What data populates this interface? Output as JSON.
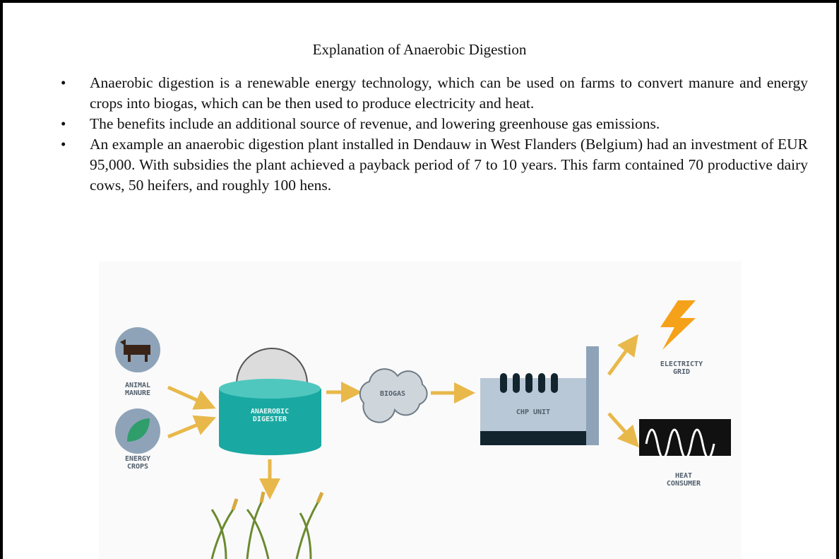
{
  "title": "Explanation of Anaerobic Digestion",
  "bullets": [
    "Anaerobic digestion is a renewable energy technology, which can be used on farms to convert manure and energy crops into biogas, which can be then used to produce electricity and heat.",
    "The benefits include an additional source of revenue, and lowering greenhouse gas emissions.",
    "An example an anaerobic digestion plant installed in Dendauw in West Flanders (Belgium) had an investment of EUR 95,000. With subsidies the plant achieved a payback period of 7 to 10 years. This farm contained 70 productive dairy cows, 50 heifers, and roughly 100 hens."
  ],
  "diagram": {
    "animal_manure": [
      "ANIMAL",
      "MANURE"
    ],
    "energy_crops": [
      "ENERGY",
      "CROPS"
    ],
    "digester": [
      "ANAEROBIC",
      "DIGESTER"
    ],
    "biogas": "BIOGAS",
    "chp": "CHP UNIT",
    "electricity": [
      "ELECTRICTY",
      "GRID"
    ],
    "heat": [
      "HEAT",
      "CONSUMER"
    ]
  }
}
